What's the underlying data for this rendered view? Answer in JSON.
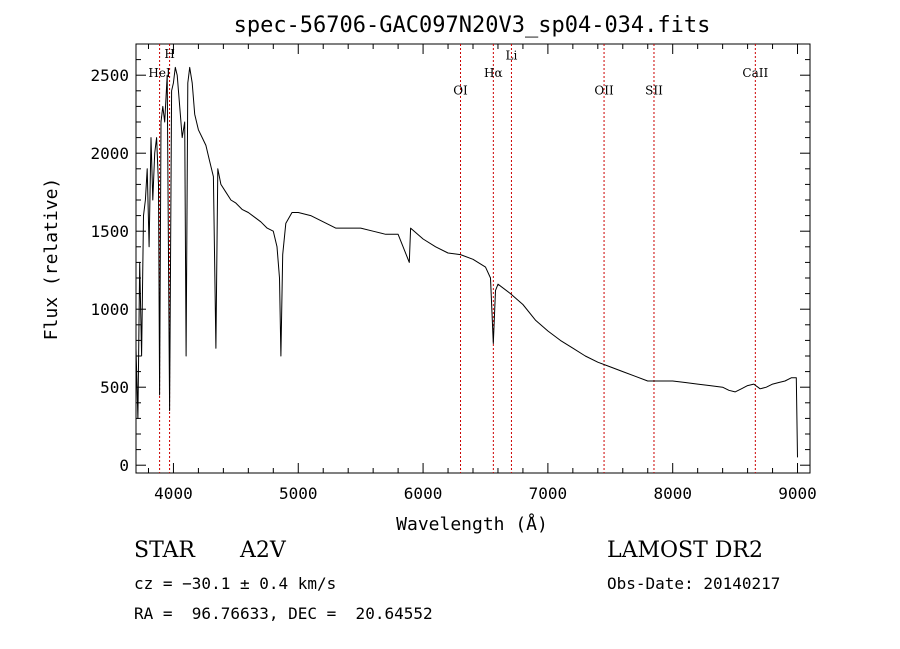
{
  "chart_data": {
    "type": "line",
    "title": "spec-56706-GAC097N20V3_sp04-034.fits",
    "xlabel": "Wavelength (Å)",
    "ylabel": "Flux (relative)",
    "xlim": [
      3700,
      9100
    ],
    "ylim": [
      -50,
      2700
    ],
    "xticks": [
      4000,
      5000,
      6000,
      7000,
      8000,
      9000
    ],
    "yticks": [
      0,
      500,
      1000,
      1500,
      2000,
      2500
    ],
    "line_color": "#000000",
    "marker_color": "#cc0000",
    "grid": false,
    "spectral_lines": [
      {
        "label": "HeI",
        "wavelength": 3889,
        "label_flux": 2490
      },
      {
        "label": "H",
        "wavelength": 3969,
        "label_flux": 2610
      },
      {
        "label": "OI",
        "wavelength": 6300,
        "label_flux": 2375
      },
      {
        "label": "Hα",
        "wavelength": 6563,
        "label_flux": 2490
      },
      {
        "label": "Li",
        "wavelength": 6708,
        "label_flux": 2600
      },
      {
        "label": "OII",
        "wavelength": 7450,
        "label_flux": 2375
      },
      {
        "label": "SII",
        "wavelength": 7850,
        "label_flux": 2375
      },
      {
        "label": "CaII",
        "wavelength": 8662,
        "label_flux": 2490
      }
    ],
    "series": [
      {
        "x": [
          3700,
          3715,
          3730,
          3745,
          3760,
          3775,
          3790,
          3805,
          3820,
          3835,
          3850,
          3865,
          3880,
          3889,
          3900,
          3915,
          3930,
          3950,
          3969,
          3985,
          4000,
          4015,
          4030,
          4050,
          4070,
          4090,
          4101,
          4115,
          4130,
          4150,
          4170,
          4200,
          4230,
          4260,
          4290,
          4320,
          4340,
          4355,
          4380,
          4420,
          4460,
          4500,
          4550,
          4600,
          4650,
          4700,
          4750,
          4800,
          4830,
          4850,
          4861,
          4875,
          4900,
          4950,
          5000,
          5100,
          5200,
          5300,
          5400,
          5500,
          5600,
          5700,
          5800,
          5890,
          5900,
          6000,
          6100,
          6200,
          6300,
          6400,
          6500,
          6540,
          6563,
          6580,
          6600,
          6700,
          6800,
          6900,
          7000,
          7100,
          7200,
          7300,
          7400,
          7500,
          7600,
          7700,
          7800,
          7900,
          8000,
          8100,
          8200,
          8300,
          8400,
          8450,
          8500,
          8550,
          8600,
          8650,
          8700,
          8750,
          8800,
          8850,
          8900,
          8950,
          8990,
          9000
        ],
        "y": [
          750,
          300,
          1300,
          700,
          1600,
          1700,
          1900,
          1400,
          2100,
          1700,
          2000,
          2100,
          1800,
          450,
          2200,
          2300,
          2200,
          2500,
          350,
          2400,
          2450,
          2550,
          2500,
          2300,
          2100,
          2200,
          700,
          2450,
          2550,
          2450,
          2250,
          2150,
          2100,
          2050,
          1950,
          1850,
          750,
          1900,
          1800,
          1750,
          1700,
          1680,
          1640,
          1620,
          1590,
          1560,
          1520,
          1500,
          1400,
          1200,
          700,
          1350,
          1550,
          1620,
          1620,
          1600,
          1560,
          1520,
          1520,
          1520,
          1500,
          1480,
          1480,
          1300,
          1520,
          1450,
          1400,
          1360,
          1350,
          1320,
          1270,
          1200,
          780,
          1120,
          1160,
          1100,
          1030,
          930,
          860,
          800,
          750,
          700,
          660,
          630,
          600,
          570,
          540,
          540,
          540,
          530,
          520,
          510,
          500,
          480,
          470,
          490,
          510,
          520,
          490,
          500,
          520,
          530,
          540,
          560,
          560,
          50
        ]
      }
    ]
  },
  "info": {
    "object": "STAR",
    "subclass": "A2V",
    "cz": "cz = −30.1 ± 0.4 km/s",
    "coords": "RA =  96.76633, DEC =  20.64552",
    "survey": "LAMOST DR2",
    "obs_date": "Obs-Date: 20140217"
  }
}
